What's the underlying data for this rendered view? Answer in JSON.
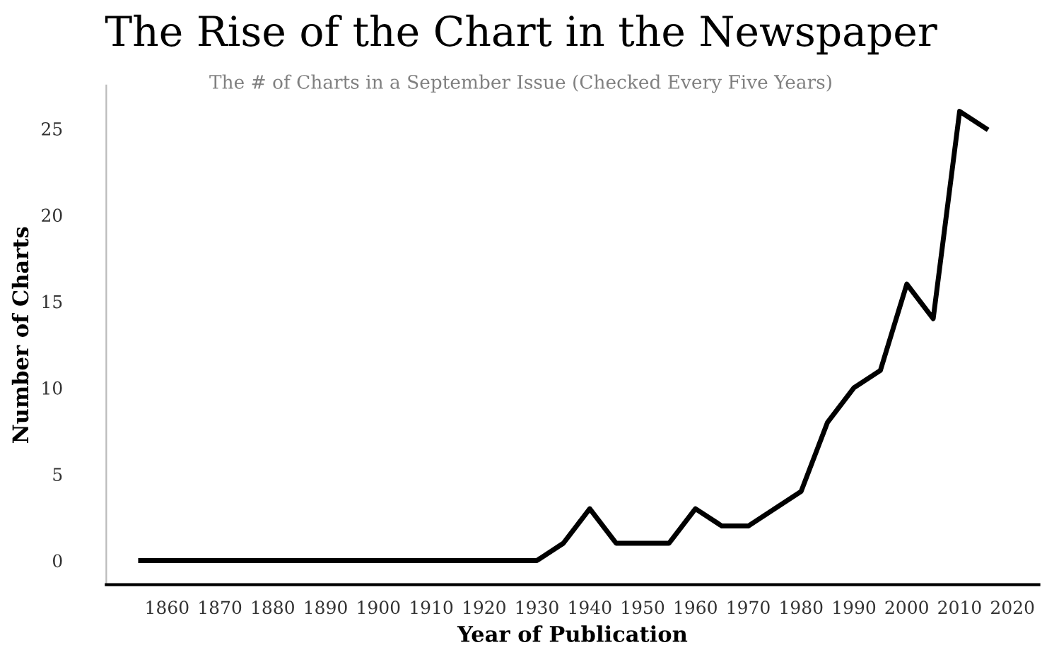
{
  "chart_data": {
    "type": "line",
    "title": "The Rise of the Chart in the Newspaper",
    "subtitle": "The # of Charts in a September Issue (Checked Every Five Years)",
    "xlabel": "Year of Publication",
    "ylabel": "Number of Charts",
    "x": [
      1855,
      1860,
      1865,
      1870,
      1875,
      1880,
      1885,
      1890,
      1895,
      1900,
      1905,
      1910,
      1915,
      1920,
      1925,
      1930,
      1935,
      1940,
      1945,
      1950,
      1955,
      1960,
      1965,
      1970,
      1975,
      1980,
      1985,
      1990,
      1995,
      2000,
      2005,
      2010,
      2015
    ],
    "series": [
      {
        "color": "#000000",
        "values": [
          0,
          0,
          0,
          0,
          0,
          0,
          0,
          0,
          0,
          0,
          0,
          0,
          0,
          0,
          0,
          0,
          1,
          3,
          1,
          1,
          1,
          3,
          2,
          2,
          3,
          4,
          8,
          10,
          11,
          16,
          14,
          26,
          25
        ]
      }
    ],
    "xlim": [
      1848.5,
      2025
    ],
    "xticks": [
      1860,
      1870,
      1880,
      1890,
      1900,
      1910,
      1920,
      1930,
      1940,
      1950,
      1960,
      1970,
      1980,
      1990,
      2000,
      2010,
      2020
    ],
    "ylim": [
      -1.4,
      27.5
    ],
    "yticks": [
      0,
      5,
      10,
      15,
      20,
      25
    ],
    "grid": false,
    "legend": false,
    "marker": "none",
    "line_style": "solid"
  }
}
